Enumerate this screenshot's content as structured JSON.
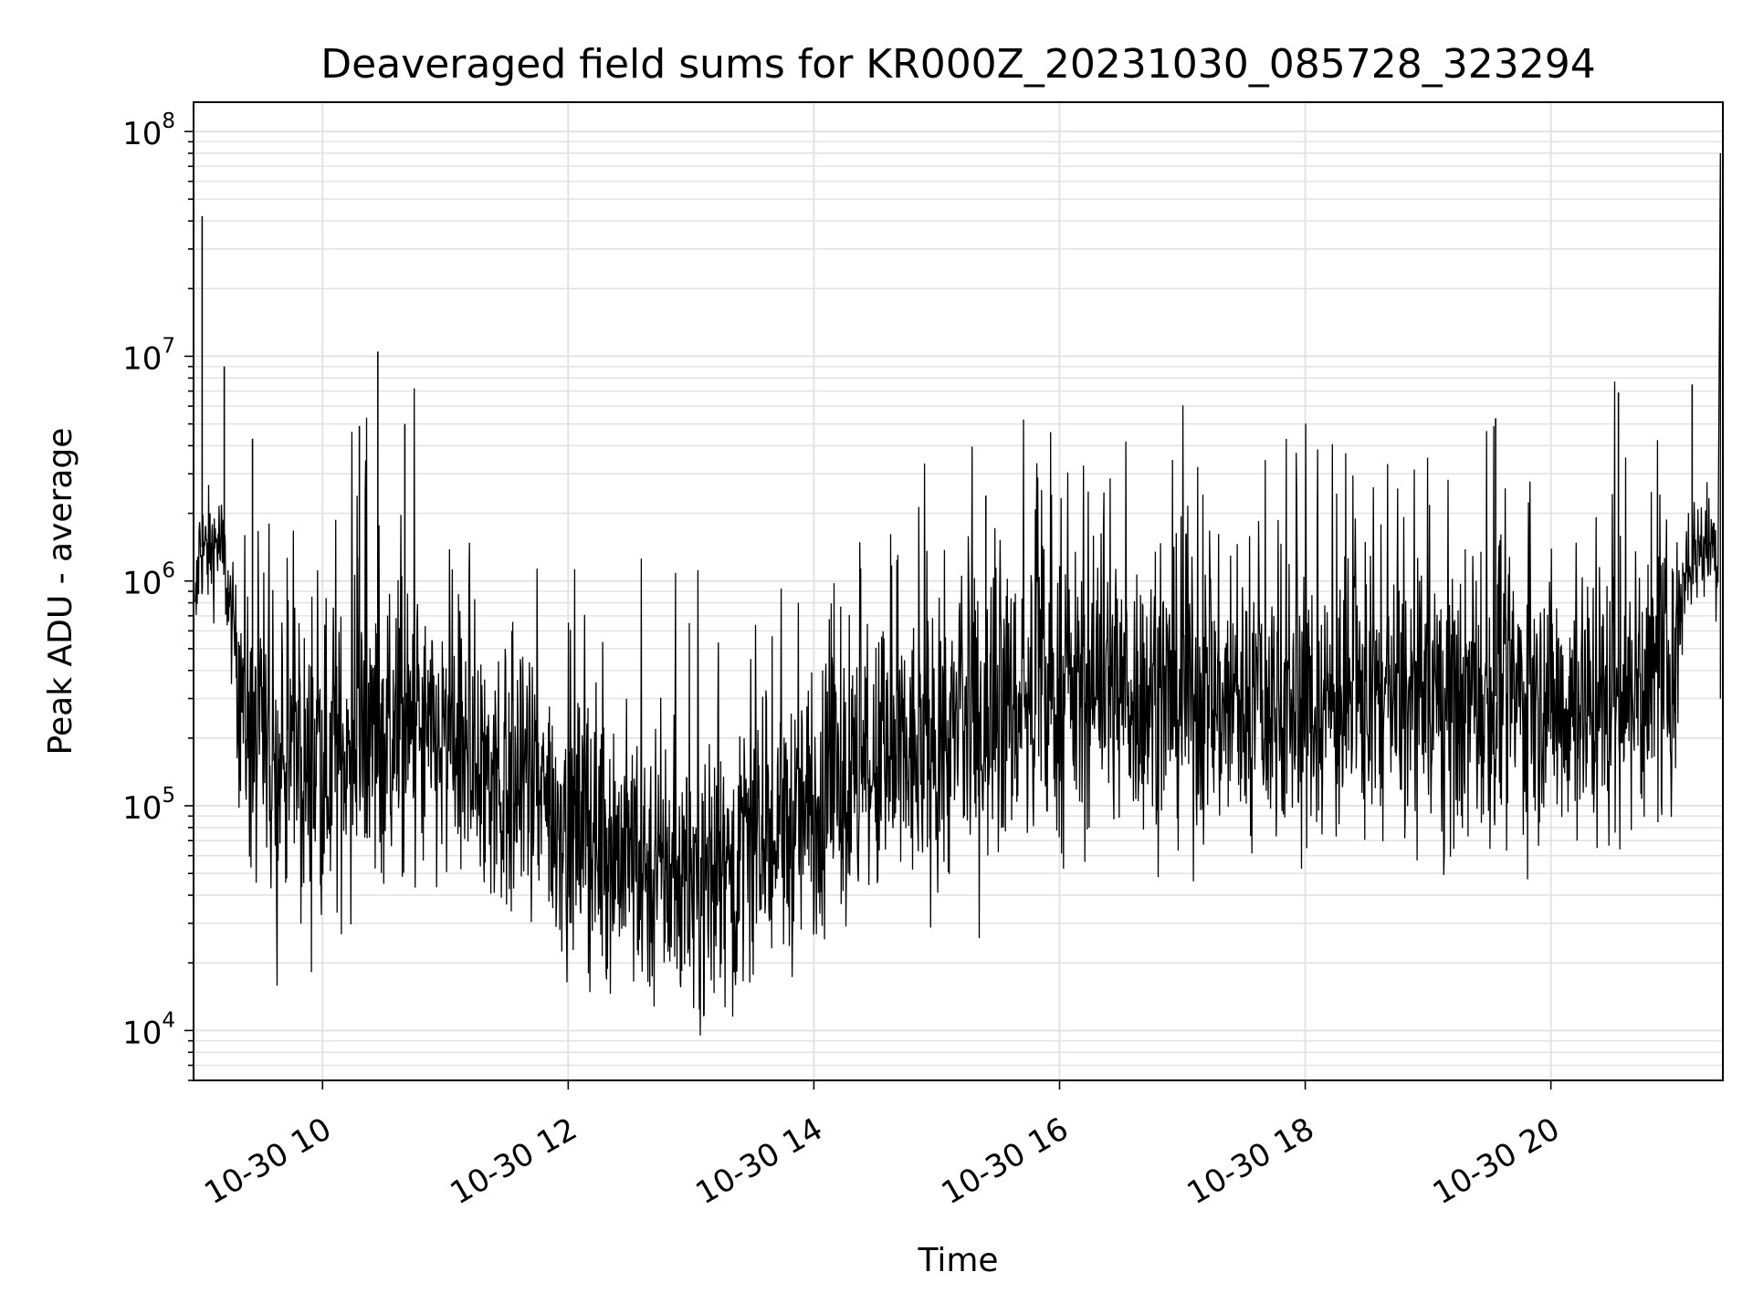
{
  "chart_data": {
    "type": "line",
    "title": "Deaveraged field sums for KR000Z_20231030_085728_323294",
    "xlabel": "Time",
    "ylabel": "Peak ADU - average",
    "x_unit": "hours (2023-10-30)",
    "xlim": [
      8.95,
      21.4
    ],
    "ylim": [
      6000,
      135000000
    ],
    "yscale": "log",
    "grid": true,
    "line_color": "#000000",
    "x_ticks": [
      {
        "value": 10,
        "label": "10-30 10"
      },
      {
        "value": 12,
        "label": "10-30 12"
      },
      {
        "value": 14,
        "label": "10-30 14"
      },
      {
        "value": 16,
        "label": "10-30 16"
      },
      {
        "value": 18,
        "label": "10-30 18"
      },
      {
        "value": 20,
        "label": "10-30 20"
      }
    ],
    "y_ticks": [
      {
        "value": 10000,
        "base": "10",
        "exp": "4"
      },
      {
        "value": 100000,
        "base": "10",
        "exp": "5"
      },
      {
        "value": 1000000,
        "base": "10",
        "exp": "6"
      },
      {
        "value": 10000000,
        "base": "10",
        "exp": "7"
      },
      {
        "value": 100000000,
        "base": "10",
        "exp": "8"
      }
    ],
    "series": [
      {
        "x": [
          8.96,
          9.0,
          9.05,
          9.1,
          9.15,
          9.2,
          9.25,
          9.3,
          9.35,
          9.4,
          9.45,
          9.5,
          9.55,
          9.6,
          9.7,
          9.8,
          9.9,
          10.0,
          10.2,
          10.4,
          10.6,
          10.8,
          11.0,
          11.2,
          11.4,
          11.6,
          11.8,
          12.0,
          12.2,
          12.4,
          12.6,
          12.8,
          13.0,
          13.2,
          13.4,
          13.6,
          13.8,
          14.0,
          14.2,
          14.4,
          14.6,
          14.8,
          15.0,
          15.2,
          15.4,
          15.6,
          15.8,
          16.0,
          16.2,
          16.4,
          16.6,
          16.8,
          17.0,
          17.2,
          17.4,
          17.6,
          17.8,
          18.0,
          18.2,
          18.4,
          18.6,
          18.8,
          19.0,
          19.2,
          19.4,
          19.6,
          19.8,
          20.0,
          20.2,
          20.4,
          20.6,
          20.8,
          21.0,
          21.1,
          21.2,
          21.3,
          21.36,
          21.38
        ],
        "y": [
          600000,
          1500000,
          1300000,
          1400000,
          1500000,
          1200000,
          700000,
          500000,
          350000,
          220000,
          180000,
          160000,
          150000,
          140000,
          150000,
          145000,
          140000,
          150000,
          170000,
          200000,
          200000,
          190000,
          170000,
          150000,
          130000,
          115000,
          100000,
          85000,
          75000,
          65000,
          55000,
          50000,
          47000,
          48000,
          55000,
          65000,
          80000,
          95000,
          110000,
          125000,
          140000,
          160000,
          180000,
          210000,
          240000,
          270000,
          290000,
          300000,
          320000,
          330000,
          325000,
          310000,
          300000,
          290000,
          285000,
          280000,
          275000,
          270000,
          275000,
          280000,
          285000,
          280000,
          275000,
          285000,
          300000,
          310000,
          300000,
          290000,
          285000,
          290000,
          310000,
          330000,
          400000,
          1200000,
          1400000,
          1500000,
          1300000,
          80000000
        ]
      }
    ],
    "annotations": [
      {
        "x": 9.02,
        "y": 42000000
      },
      {
        "x": 9.2,
        "y": 9000000
      },
      {
        "x": 9.43,
        "y": 4300000
      },
      {
        "x": 10.3,
        "y": 4900000
      },
      {
        "x": 10.45,
        "y": 10500000
      },
      {
        "x": 10.67,
        "y": 5000000
      },
      {
        "x": 15.4,
        "y": 2400000
      },
      {
        "x": 19.55,
        "y": 5300000
      },
      {
        "x": 20.55,
        "y": 6900000
      },
      {
        "x": 21.15,
        "y": 7500000
      }
    ]
  }
}
